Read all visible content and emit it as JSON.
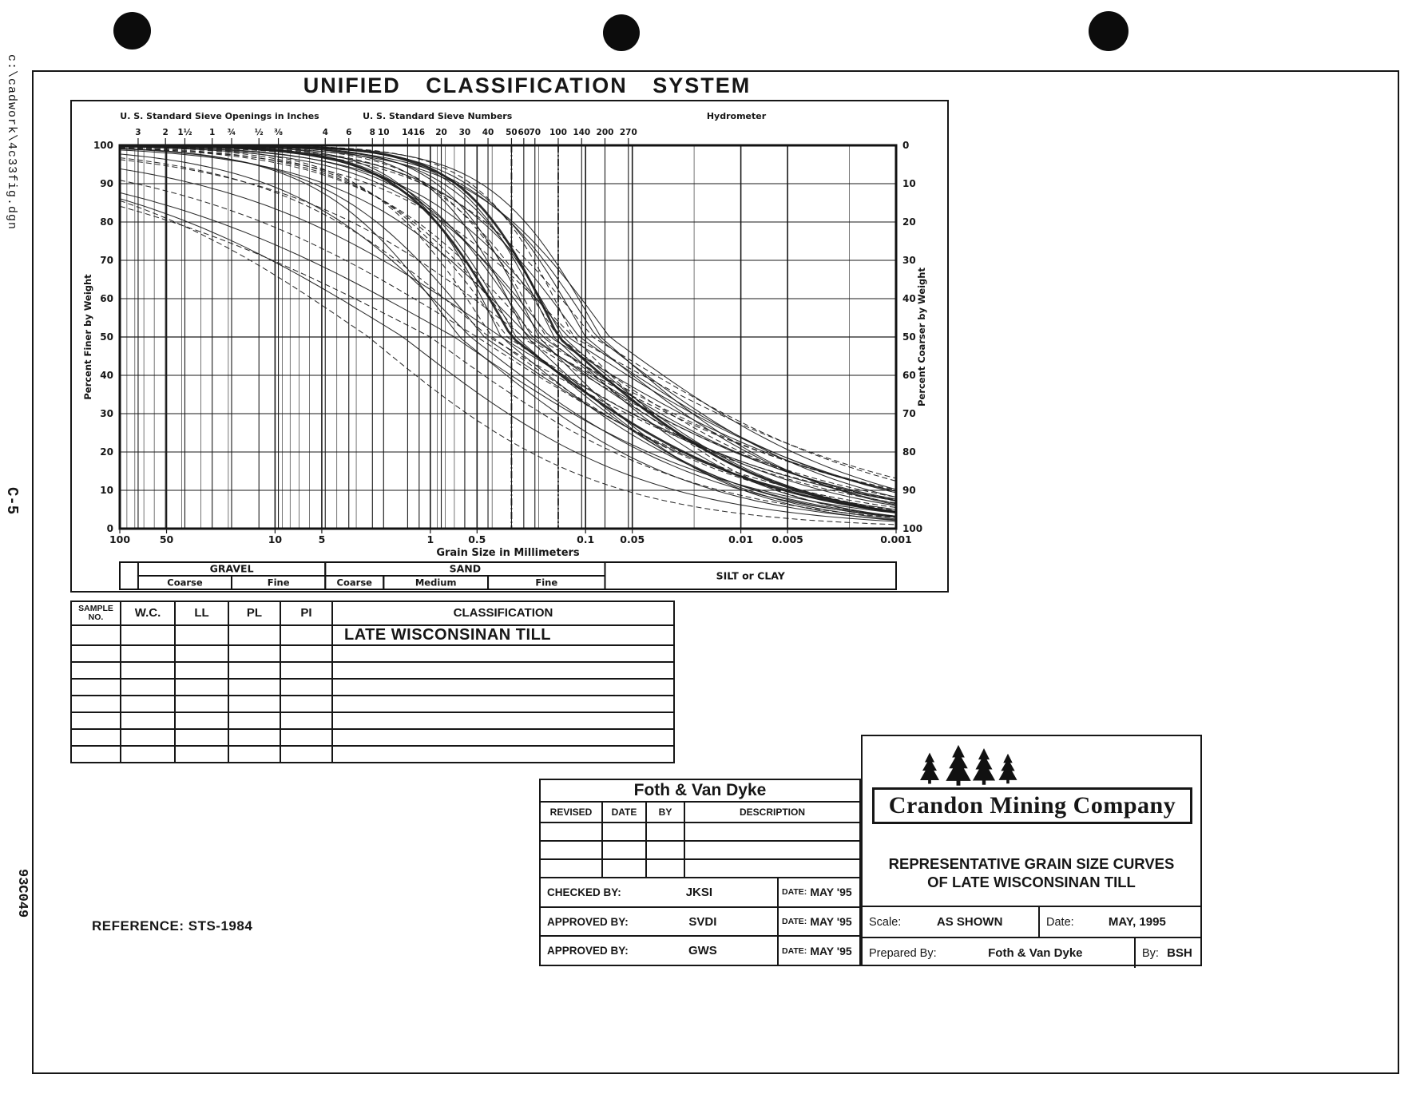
{
  "page": {
    "title": "UNIFIED CLASSIFICATION SYSTEM",
    "reference": "REFERENCE: STS-1984",
    "margin": {
      "file_path": "c:\\cadwork\\4c33fig.dgn",
      "sheet_code": "C-5",
      "doc_number": "93C049"
    }
  },
  "chart_data": {
    "type": "line",
    "x_axis": {
      "title": "Grain Size in Millimeters",
      "scale": "log",
      "min_mm": 0.001,
      "max_mm": 100,
      "tick_labels": [
        "100",
        "50",
        "10",
        "5",
        "1",
        "0.5",
        "0.1",
        "0.05",
        "0.01",
        "0.005",
        "0.001"
      ],
      "tick_values_mm": [
        100,
        50,
        10,
        5,
        1,
        0.5,
        0.1,
        0.05,
        0.01,
        0.005,
        0.001
      ]
    },
    "left_axis": {
      "title": "Percent Finer by Weight",
      "min": 0,
      "max": 100,
      "tick_step": 10
    },
    "right_axis": {
      "title": "Percent Coarser by Weight",
      "min": 0,
      "max": 100,
      "tick_step": 10
    },
    "top_axis": {
      "inches_heading": "U. S. Standard Sieve Openings in Inches",
      "numbers_heading": "U. S. Standard Sieve Numbers",
      "hydrometer_heading": "Hydrometer",
      "inch_ticks": [
        {
          "label": "3",
          "mm": 76.2
        },
        {
          "label": "2",
          "mm": 50.8
        },
        {
          "label": "1½",
          "mm": 38.1
        },
        {
          "label": "1",
          "mm": 25.4
        },
        {
          "label": "¾",
          "mm": 19.05
        },
        {
          "label": "½",
          "mm": 12.7
        },
        {
          "label": "⅜",
          "mm": 9.52
        }
      ],
      "number_ticks": [
        {
          "label": "4",
          "mm": 4.75
        },
        {
          "label": "6",
          "mm": 3.35
        },
        {
          "label": "8",
          "mm": 2.36
        },
        {
          "label": "10",
          "mm": 2.0
        },
        {
          "label": "14",
          "mm": 1.4
        },
        {
          "label": "16",
          "mm": 1.18
        },
        {
          "label": "20",
          "mm": 0.85
        },
        {
          "label": "30",
          "mm": 0.6
        },
        {
          "label": "40",
          "mm": 0.425
        },
        {
          "label": "50",
          "mm": 0.3
        },
        {
          "label": "60",
          "mm": 0.25
        },
        {
          "label": "70",
          "mm": 0.212
        },
        {
          "label": "100",
          "mm": 0.15
        },
        {
          "label": "140",
          "mm": 0.106
        },
        {
          "label": "200",
          "mm": 0.075
        },
        {
          "label": "270",
          "mm": 0.053
        }
      ]
    },
    "emphasis_dashed_lines_mm": [
      0.3,
      0.15
    ],
    "bands": {
      "primary": [
        {
          "label": "GRAVEL",
          "from_mm": 76.2,
          "to_mm": 4.75,
          "tall": false
        },
        {
          "label": "SAND",
          "from_mm": 4.75,
          "to_mm": 0.075,
          "tall": false
        },
        {
          "label": "SILT or CLAY",
          "from_mm": 0.075,
          "to_mm": 0.001,
          "tall": true
        }
      ],
      "secondary": [
        {
          "label": "Coarse",
          "from_mm": 76.2,
          "to_mm": 19.05
        },
        {
          "label": "Fine",
          "from_mm": 19.05,
          "to_mm": 4.75
        },
        {
          "label": "Coarse",
          "from_mm": 4.75,
          "to_mm": 2.0
        },
        {
          "label": "Medium",
          "from_mm": 2.0,
          "to_mm": 0.425
        },
        {
          "label": "Fine",
          "from_mm": 0.425,
          "to_mm": 0.075
        }
      ]
    },
    "curves_note": "Approximately 38 overlapping grain-size distribution curves of Late Wisconsinan till; parameters approximate the scanned envelope",
    "curve_format": [
      "d50_mm",
      "sigma_coarse_decades",
      "sigma_fine_decades",
      "dashed",
      "bold"
    ],
    "curves": [
      [
        0.3,
        0.35,
        0.8,
        0,
        1
      ],
      [
        0.15,
        0.3,
        0.7,
        0,
        1
      ],
      [
        0.45,
        0.5,
        0.9,
        0,
        0
      ],
      [
        0.4,
        0.4,
        0.85,
        1,
        0
      ],
      [
        0.35,
        0.3,
        0.75,
        0,
        0
      ],
      [
        0.32,
        0.45,
        0.95,
        1,
        0
      ],
      [
        0.28,
        0.35,
        0.7,
        0,
        0
      ],
      [
        0.26,
        0.5,
        1.0,
        1,
        0
      ],
      [
        0.24,
        0.3,
        0.65,
        0,
        0
      ],
      [
        0.22,
        0.4,
        0.85,
        0,
        0
      ],
      [
        0.21,
        0.55,
        1.05,
        1,
        0
      ],
      [
        0.2,
        0.3,
        0.6,
        0,
        0
      ],
      [
        0.19,
        0.45,
        0.9,
        0,
        0
      ],
      [
        0.18,
        0.35,
        0.75,
        1,
        0
      ],
      [
        0.17,
        0.5,
        1.0,
        0,
        0
      ],
      [
        0.16,
        0.3,
        0.65,
        0,
        0
      ],
      [
        0.15,
        0.4,
        0.85,
        1,
        0
      ],
      [
        0.14,
        0.35,
        0.7,
        0,
        0
      ],
      [
        0.13,
        0.5,
        0.95,
        0,
        0
      ],
      [
        0.12,
        0.3,
        0.6,
        1,
        0
      ],
      [
        0.11,
        0.45,
        0.9,
        0,
        0
      ],
      [
        0.1,
        0.35,
        0.75,
        0,
        0
      ],
      [
        0.09,
        0.5,
        1.0,
        1,
        0
      ],
      [
        0.08,
        0.35,
        0.7,
        0,
        0
      ],
      [
        0.07,
        0.45,
        0.85,
        0,
        0
      ],
      [
        0.25,
        0.8,
        1.1,
        1,
        0
      ],
      [
        0.35,
        0.9,
        1.0,
        0,
        0
      ],
      [
        0.5,
        1.0,
        0.95,
        1,
        0
      ],
      [
        0.7,
        1.1,
        0.9,
        0,
        0
      ],
      [
        1.0,
        1.2,
        0.85,
        1,
        0
      ],
      [
        1.5,
        1.0,
        0.8,
        0,
        0
      ],
      [
        2.5,
        0.9,
        0.75,
        1,
        0
      ],
      [
        0.55,
        0.6,
        0.8,
        0,
        0
      ],
      [
        0.65,
        0.45,
        0.75,
        0,
        0
      ],
      [
        0.42,
        0.7,
        1.05,
        1,
        0
      ],
      [
        0.23,
        0.6,
        0.95,
        0,
        0
      ],
      [
        0.12,
        0.6,
        1.1,
        1,
        0
      ],
      [
        0.085,
        0.4,
        0.8,
        0,
        0
      ]
    ]
  },
  "sample_table": {
    "headers": [
      "SAMPLE NO.",
      "W.C.",
      "LL",
      "PL",
      "PI",
      "CLASSIFICATION"
    ],
    "rows": [
      [
        "",
        "",
        "",
        "",
        "",
        "LATE WISCONSINAN TILL"
      ],
      [
        "",
        "",
        "",
        "",
        "",
        ""
      ],
      [
        "",
        "",
        "",
        "",
        "",
        ""
      ],
      [
        "",
        "",
        "",
        "",
        "",
        ""
      ],
      [
        "",
        "",
        "",
        "",
        "",
        ""
      ],
      [
        "",
        "",
        "",
        "",
        "",
        ""
      ],
      [
        "",
        "",
        "",
        "",
        "",
        ""
      ],
      [
        "",
        "",
        "",
        "",
        "",
        ""
      ]
    ]
  },
  "foth_block": {
    "company": "Foth & Van Dyke",
    "revision_headers": [
      "REVISED",
      "DATE",
      "BY",
      "DESCRIPTION"
    ],
    "signoffs": [
      {
        "role": "CHECKED BY:",
        "name": "JKSI",
        "date_label": "DATE:",
        "date": "MAY '95"
      },
      {
        "role": "APPROVED BY:",
        "name": "SVDI",
        "date_label": "DATE:",
        "date": "MAY '95"
      },
      {
        "role": "APPROVED BY:",
        "name": "GWS",
        "date_label": "DATE:",
        "date": "MAY '95"
      }
    ]
  },
  "crandon_block": {
    "company": "Crandon Mining Company",
    "title_line1": "REPRESENTATIVE GRAIN SIZE CURVES",
    "title_line2": "OF LATE WISCONSINAN TILL",
    "scale_label": "Scale:",
    "scale_value": "AS SHOWN",
    "date_label": "Date:",
    "date_value": "MAY, 1995",
    "prepared_label": "Prepared By:",
    "prepared_value": "Foth & Van Dyke",
    "by_label": "By:",
    "by_value": "BSH"
  }
}
